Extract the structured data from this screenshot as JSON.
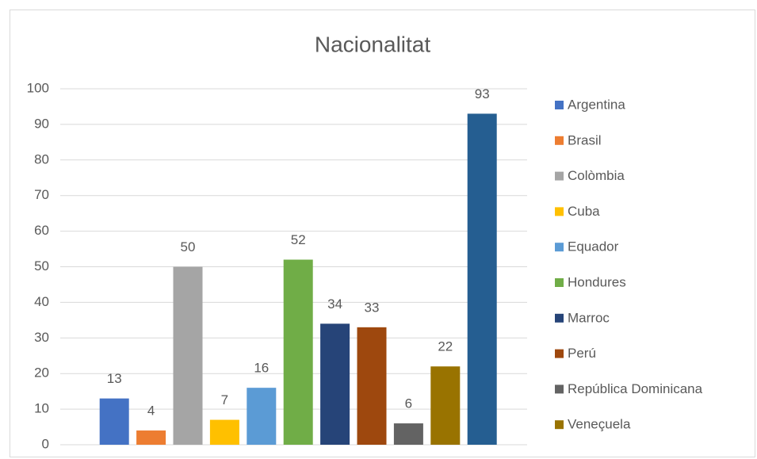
{
  "chart_data": {
    "type": "bar",
    "title": "Nacionalitat",
    "series": [
      {
        "name": "Argentina",
        "color": "#4472c4",
        "values": [
          13
        ]
      },
      {
        "name": "Brasil",
        "color": "#ed7d31",
        "values": [
          4
        ]
      },
      {
        "name": "Colòmbia",
        "color": "#a5a5a5",
        "values": [
          50
        ]
      },
      {
        "name": "Cuba",
        "color": "#ffc000",
        "values": [
          7
        ]
      },
      {
        "name": "Equador",
        "color": "#5b9bd5",
        "values": [
          16
        ]
      },
      {
        "name": "Hondures",
        "color": "#70ad47",
        "values": [
          52
        ]
      },
      {
        "name": "Marroc",
        "color": "#264478",
        "values": [
          34
        ]
      },
      {
        "name": "Perú",
        "color": "#9e480e",
        "values": [
          33
        ]
      },
      {
        "name": "República Dominicana",
        "color": "#636363",
        "values": [
          6
        ]
      },
      {
        "name": "Veneçuela",
        "color": "#997300",
        "values": [
          22
        ]
      },
      {
        "name": null,
        "color": "#255e91",
        "values": [
          93
        ]
      }
    ],
    "ylim": [
      0,
      100
    ],
    "yticks": [
      0,
      10,
      20,
      30,
      40,
      50,
      60,
      70,
      80,
      90,
      100
    ],
    "grid": true,
    "legend": "right"
  }
}
